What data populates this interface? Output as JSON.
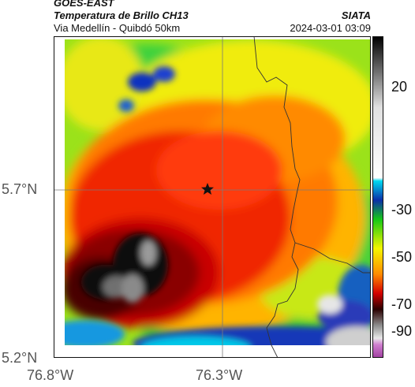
{
  "header": {
    "satellite": "GOES-EAST",
    "product": "Temperatura de Brillo CH13",
    "subtitle": "Via Medellín - Quibdó 50km",
    "organization": "SIATA",
    "timestamp": "2024-03-01 03:09"
  },
  "map": {
    "lat_labels": [
      "5.7°N",
      "5.2°N"
    ],
    "lon_labels": [
      "76.8°W",
      "76.3°W"
    ],
    "marker": "star-marker"
  },
  "colorbar": {
    "labels": [
      "20",
      "-30",
      "-50",
      "-70",
      "-90"
    ],
    "colors": {
      "cold": "#000000",
      "red": "#d40000",
      "yellow": "#f4f500",
      "green": "#16c816",
      "blue": "#0a2fa8",
      "cyan": "#00d8f0",
      "gray": "#8c8c8c",
      "magenta": "#a040a0"
    }
  }
}
